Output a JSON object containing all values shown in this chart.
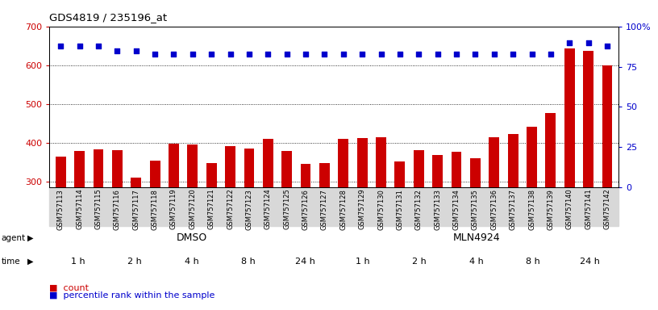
{
  "title": "GDS4819 / 235196_at",
  "samples": [
    "GSM757113",
    "GSM757114",
    "GSM757115",
    "GSM757116",
    "GSM757117",
    "GSM757118",
    "GSM757119",
    "GSM757120",
    "GSM757121",
    "GSM757122",
    "GSM757123",
    "GSM757124",
    "GSM757125",
    "GSM757126",
    "GSM757127",
    "GSM757128",
    "GSM757129",
    "GSM757130",
    "GSM757131",
    "GSM757132",
    "GSM757133",
    "GSM757134",
    "GSM757135",
    "GSM757136",
    "GSM757137",
    "GSM757138",
    "GSM757139",
    "GSM757140",
    "GSM757141",
    "GSM757142"
  ],
  "counts": [
    365,
    380,
    383,
    381,
    311,
    354,
    398,
    395,
    347,
    392,
    385,
    410,
    379,
    345,
    348,
    410,
    412,
    414,
    353,
    381,
    368,
    377,
    360,
    415,
    422,
    441,
    476,
    643,
    636,
    600
  ],
  "percentile_ranks": [
    88,
    88,
    88,
    85,
    85,
    83,
    83,
    83,
    83,
    83,
    83,
    83,
    83,
    83,
    83,
    83,
    83,
    83,
    83,
    83,
    83,
    83,
    83,
    83,
    83,
    83,
    83,
    90,
    90,
    88
  ],
  "bar_color": "#cc0000",
  "dot_color": "#0000cc",
  "ylim_left": [
    285,
    700
  ],
  "ylim_right": [
    0,
    100
  ],
  "yticks_left": [
    300,
    400,
    500,
    600,
    700
  ],
  "yticks_right": [
    0,
    25,
    50,
    75,
    100
  ],
  "agent_dmso_label": "DMSO",
  "agent_mln_label": "MLN4924",
  "agent_color_dmso": "#99ee88",
  "agent_color_mln": "#55dd33",
  "time_group_colors": [
    "#ffffff",
    "#ee99ee",
    "#dd66dd",
    "#bb33bb",
    "#992299",
    "#ffffff",
    "#ee99ee",
    "#dd66dd",
    "#bb33bb",
    "#992299"
  ],
  "time_groups": [
    {
      "label": "1 h",
      "start": 0,
      "end": 3
    },
    {
      "label": "2 h",
      "start": 3,
      "end": 6
    },
    {
      "label": "4 h",
      "start": 6,
      "end": 9
    },
    {
      "label": "8 h",
      "start": 9,
      "end": 12
    },
    {
      "label": "24 h",
      "start": 12,
      "end": 15
    },
    {
      "label": "1 h",
      "start": 15,
      "end": 18
    },
    {
      "label": "2 h",
      "start": 18,
      "end": 21
    },
    {
      "label": "4 h",
      "start": 21,
      "end": 24
    },
    {
      "label": "8 h",
      "start": 24,
      "end": 27
    },
    {
      "label": "24 h",
      "start": 27,
      "end": 30
    }
  ],
  "legend_count_label": "count",
  "legend_pct_label": "percentile rank within the sample",
  "plot_bg": "#ffffff",
  "fig_bg": "#ffffff",
  "xticklabel_bg": "#d8d8d8"
}
